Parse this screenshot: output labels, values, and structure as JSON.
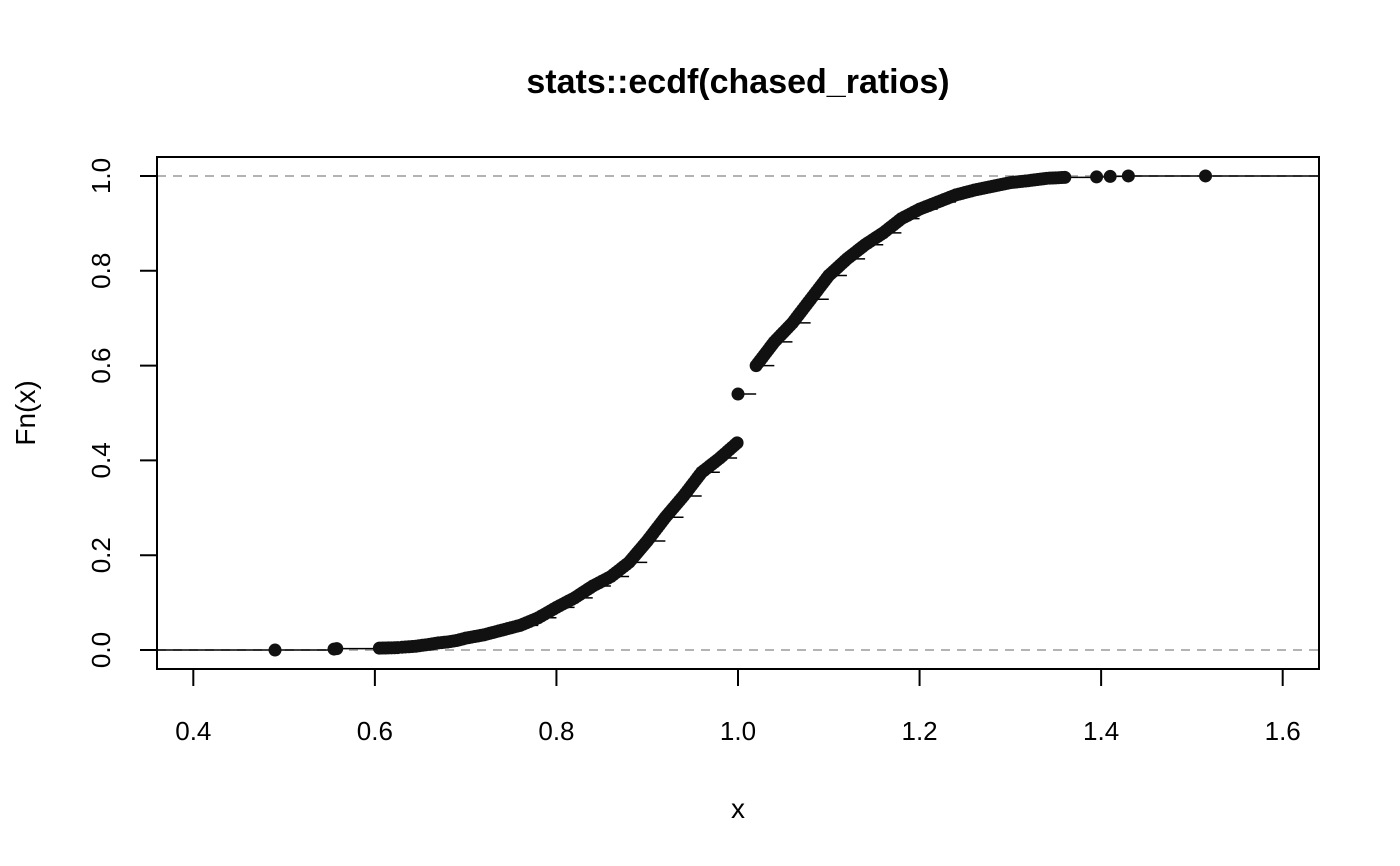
{
  "chart_data": {
    "type": "scatter",
    "title": "stats::ecdf(chased_ratios)",
    "xlabel": "x",
    "ylabel": "Fn(x)",
    "xlim": [
      0.36,
      1.64
    ],
    "ylim": [
      -0.04,
      1.04
    ],
    "x_ticks": [
      0.4,
      0.6,
      0.8,
      1.0,
      1.2,
      1.4,
      1.6
    ],
    "x_tick_labels": [
      "0.4",
      "0.6",
      "0.8",
      "1.0",
      "1.2",
      "1.4",
      "1.6"
    ],
    "y_ticks": [
      0.0,
      0.2,
      0.4,
      0.6,
      0.8,
      1.0
    ],
    "y_tick_labels": [
      "0.0",
      "0.2",
      "0.4",
      "0.6",
      "0.8",
      "1.0"
    ],
    "reference_lines": [
      0,
      1
    ],
    "grid": false,
    "series": [
      {
        "points": [
          [
            0.49,
            0.0
          ],
          [
            0.555,
            0.002
          ],
          [
            0.558,
            0.003
          ],
          [
            0.605,
            0.004
          ],
          [
            0.625,
            0.005
          ],
          [
            0.63,
            0.006
          ],
          [
            0.645,
            0.008
          ],
          [
            0.66,
            0.012
          ],
          [
            0.67,
            0.015
          ],
          [
            0.68,
            0.017
          ],
          [
            0.69,
            0.02
          ],
          [
            0.7,
            0.025
          ],
          [
            0.72,
            0.032
          ],
          [
            0.74,
            0.042
          ],
          [
            0.76,
            0.052
          ],
          [
            0.78,
            0.068
          ],
          [
            0.8,
            0.09
          ],
          [
            0.82,
            0.11
          ],
          [
            0.84,
            0.135
          ],
          [
            0.86,
            0.155
          ],
          [
            0.88,
            0.185
          ],
          [
            0.9,
            0.23
          ],
          [
            0.92,
            0.28
          ],
          [
            0.94,
            0.325
          ],
          [
            0.96,
            0.375
          ],
          [
            0.98,
            0.405
          ],
          [
            0.999,
            0.437
          ],
          [
            1.0,
            0.54
          ],
          [
            1.02,
            0.6
          ],
          [
            1.04,
            0.65
          ],
          [
            1.06,
            0.69
          ],
          [
            1.08,
            0.74
          ],
          [
            1.1,
            0.79
          ],
          [
            1.12,
            0.825
          ],
          [
            1.14,
            0.855
          ],
          [
            1.16,
            0.88
          ],
          [
            1.18,
            0.91
          ],
          [
            1.2,
            0.93
          ],
          [
            1.22,
            0.945
          ],
          [
            1.24,
            0.96
          ],
          [
            1.26,
            0.97
          ],
          [
            1.28,
            0.978
          ],
          [
            1.3,
            0.986
          ],
          [
            1.32,
            0.99
          ],
          [
            1.34,
            0.995
          ],
          [
            1.36,
            0.997
          ],
          [
            1.395,
            0.998
          ],
          [
            1.41,
            0.999
          ],
          [
            1.43,
            1.0
          ],
          [
            1.515,
            1.0
          ]
        ]
      }
    ]
  }
}
